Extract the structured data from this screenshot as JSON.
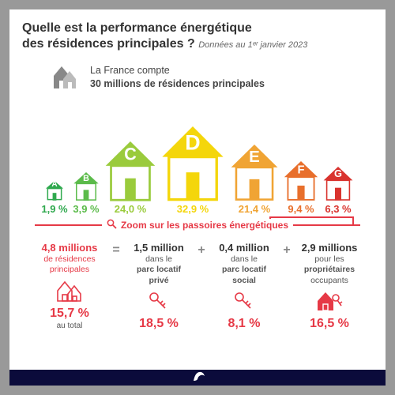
{
  "title_line1": "Quelle est la performance énergétique",
  "title_line2": "des résidences principales ?",
  "subtitle": "Données au 1ᵉʳ janvier 2023",
  "intro_line1": "La France compte",
  "intro_line2": "30 millions de résidences principales",
  "classes": [
    {
      "label": "A",
      "pct": "1,9 %",
      "color": "#2fa94e",
      "size": 24,
      "pctWidth": 36
    },
    {
      "label": "B",
      "pct": "3,9 %",
      "color": "#5bbb4a",
      "size": 34,
      "pctWidth": 40
    },
    {
      "label": "C",
      "pct": "24,0 %",
      "color": "#9acb3c",
      "size": 68,
      "pctWidth": 68
    },
    {
      "label": "D",
      "pct": "32,9 %",
      "color": "#f4d60b",
      "size": 84,
      "pctWidth": 86
    },
    {
      "label": "E",
      "pct": "21,4 %",
      "color": "#f0a434",
      "size": 64,
      "pctWidth": 66
    },
    {
      "label": "F",
      "pct": "9,4 %",
      "color": "#e86f2c",
      "size": 46,
      "pctWidth": 48
    },
    {
      "label": "G",
      "pct": "6,3 %",
      "color": "#d9332e",
      "size": 40,
      "pctWidth": 42
    }
  ],
  "zoom_label": "Zoom sur les passoires énergétiques",
  "breakdown": {
    "total": {
      "big": "4,8 millions",
      "text1": "de résidences",
      "text2": "principales",
      "pct": "15,7 %",
      "sub": "au total"
    },
    "items": [
      {
        "big": "1,5 million",
        "text1": "dans le",
        "text2": "parc locatif",
        "text3": "privé",
        "pct": "18,5 %"
      },
      {
        "big": "0,4 million",
        "text1": "dans le",
        "text2": "parc locatif",
        "text3": "social",
        "pct": "8,1 %"
      },
      {
        "big": "2,9 millions",
        "text1": "pour les",
        "text2": "propriétaires",
        "text3": "occupants",
        "pct": "16,5 %"
      }
    ]
  },
  "colors": {
    "accent": "#e63946",
    "grey": "#777"
  }
}
